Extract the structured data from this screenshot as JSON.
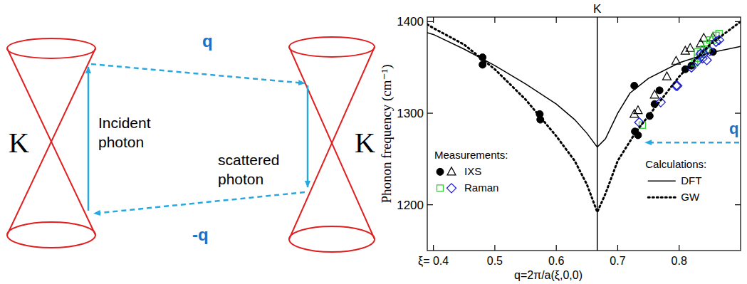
{
  "diagram": {
    "cone_labels": [
      "K",
      "K"
    ],
    "q_label": "q",
    "minus_q_label": "-q",
    "incident_label": "Incident photon",
    "scattered_label": "scattered photon"
  },
  "chart_data": {
    "type": "scatter",
    "x_label": "q=2π/a(ξ,0,0)",
    "y_label": "Phonon frequency (cm⁻¹)",
    "xlim": [
      0.39,
      0.9
    ],
    "ylim": [
      1150,
      1405
    ],
    "xticks": [
      {
        "value": 0.4,
        "label": "ξ= 0.4"
      },
      0.5,
      0.6,
      0.7,
      0.8
    ],
    "yticks": [
      1200,
      1300,
      1400
    ],
    "grid": false,
    "legend": "inside",
    "annotations": [
      {
        "text": "K",
        "x": 0.6667
      },
      {
        "text": "q"
      }
    ],
    "legend_groups": [
      {
        "title": "Measurements:",
        "series": [
          0,
          1,
          2,
          3
        ]
      },
      {
        "title": "Calculations:",
        "series": [
          4,
          5
        ]
      }
    ],
    "series": [
      {
        "name": "IXS",
        "type": "scatter",
        "marker": "circle",
        "color": "#000000",
        "x": [
          0.48,
          0.48,
          0.573,
          0.574,
          0.727,
          0.728,
          0.733,
          0.752,
          0.76,
          0.768,
          0.81,
          0.82,
          0.855
        ],
        "values": [
          1361,
          1353,
          1299,
          1293,
          1330,
          1280,
          1276,
          1297,
          1310,
          1325,
          1348,
          1352,
          1367
        ]
      },
      {
        "name": "IXS",
        "type": "scatter",
        "marker": "triangle-open",
        "color": "#000000",
        "x": [
          0.727,
          0.733,
          0.76,
          0.78,
          0.795,
          0.81,
          0.818,
          0.835,
          0.84,
          0.855
        ],
        "values": [
          1299,
          1303,
          1320,
          1340,
          1357,
          1368,
          1371,
          1376,
          1382,
          1383
        ]
      },
      {
        "name": "Raman",
        "type": "scatter",
        "marker": "square-open",
        "color": "#33cc33",
        "x": [
          0.74,
          0.825,
          0.83,
          0.835,
          0.84,
          0.845,
          0.85,
          0.86,
          0.865,
          0.83,
          0.845,
          0.855
        ],
        "values": [
          1287,
          1355,
          1360,
          1365,
          1370,
          1375,
          1380,
          1385,
          1387,
          1367,
          1370,
          1380
        ]
      },
      {
        "name": "Raman",
        "type": "scatter",
        "marker": "diamond-open",
        "color": "#1a1adb",
        "x": [
          0.735,
          0.77,
          0.795,
          0.797,
          0.82,
          0.83,
          0.838,
          0.84,
          0.845,
          0.85,
          0.86,
          0.865,
          0.835
        ],
        "values": [
          1290,
          1312,
          1330,
          1330,
          1350,
          1357,
          1360,
          1365,
          1358,
          1368,
          1378,
          1380,
          1365
        ]
      },
      {
        "name": "DFT",
        "type": "line",
        "line_style": "solid",
        "color": "#000000",
        "x": [
          0.39,
          0.4,
          0.45,
          0.5,
          0.55,
          0.6,
          0.63,
          0.65,
          0.6667,
          0.68,
          0.7,
          0.72,
          0.75,
          0.8,
          0.85,
          0.9
        ],
        "values": [
          1388,
          1386,
          1370,
          1352,
          1332,
          1310,
          1293,
          1278,
          1263,
          1272,
          1300,
          1322,
          1338,
          1355,
          1366,
          1373
        ]
      },
      {
        "name": "GW",
        "type": "line",
        "line_style": "dotted",
        "color": "#000000",
        "x": [
          0.39,
          0.4,
          0.45,
          0.5,
          0.55,
          0.6,
          0.63,
          0.65,
          0.6667,
          0.68,
          0.7,
          0.73,
          0.75,
          0.8,
          0.85,
          0.9
        ],
        "values": [
          1397,
          1393,
          1375,
          1348,
          1315,
          1275,
          1248,
          1222,
          1192,
          1212,
          1248,
          1280,
          1297,
          1340,
          1375,
          1400
        ]
      }
    ]
  }
}
